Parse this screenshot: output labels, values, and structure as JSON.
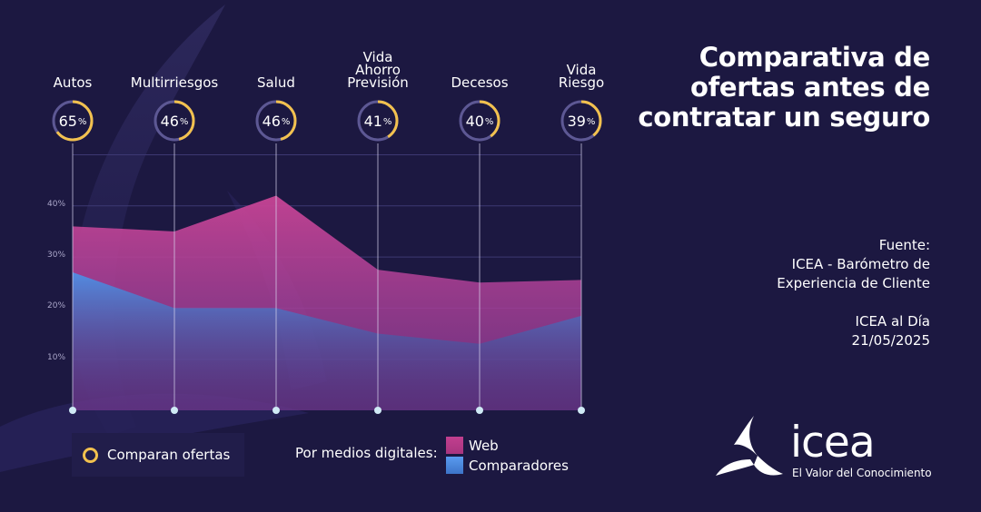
{
  "colors": {
    "background": "#1c1841",
    "web": "#c23f8f",
    "comparadores": "#4a8ce0",
    "ring": "#f2c14e"
  },
  "title": "Comparativa de ofertas antes de contratar un seguro",
  "source": {
    "label": "Fuente:",
    "line1": "ICEA - Barómetro de",
    "line2": "Experiencia de Cliente"
  },
  "publication": {
    "name": "ICEA al Día",
    "date": "21/05/2025"
  },
  "categories": [
    {
      "label": "Autos",
      "compare": 65,
      "compare_text": "65"
    },
    {
      "label": "Multirriesgos",
      "compare": 46,
      "compare_text": "46"
    },
    {
      "label": "Salud",
      "compare": 46,
      "compare_text": "46"
    },
    {
      "label": "Vida\nAhorro\nPrevisión",
      "compare": 41,
      "compare_text": "41"
    },
    {
      "label": "Decesos",
      "compare": 40,
      "compare_text": "40"
    },
    {
      "label": "Vida\nRiesgo",
      "compare": 39,
      "compare_text": "39"
    }
  ],
  "pct_unit": "%",
  "chart_data": {
    "type": "area",
    "categories": [
      "Autos",
      "Multirriesgos",
      "Salud",
      "Vida Ahorro Previsión",
      "Decesos",
      "Vida Riesgo"
    ],
    "series": [
      {
        "name": "Web",
        "values": [
          36,
          35,
          42,
          27.5,
          25,
          25.5
        ]
      },
      {
        "name": "Comparadores",
        "values": [
          27,
          20,
          20,
          15,
          13,
          18.5
        ]
      },
      {
        "name": "Comparan ofertas",
        "values": [
          65,
          46,
          46,
          41,
          40,
          39
        ]
      }
    ],
    "yticks": [
      "10%",
      "20%",
      "30%",
      "40%"
    ],
    "ylim": [
      0,
      50
    ],
    "grid": true
  },
  "legend": {
    "compare": "Comparan ofertas",
    "digital": "Por medios digitales:",
    "web": "Web",
    "comparadores": "Comparadores"
  },
  "logo": {
    "word": "icea",
    "tagline": "El Valor del Conocimiento"
  }
}
